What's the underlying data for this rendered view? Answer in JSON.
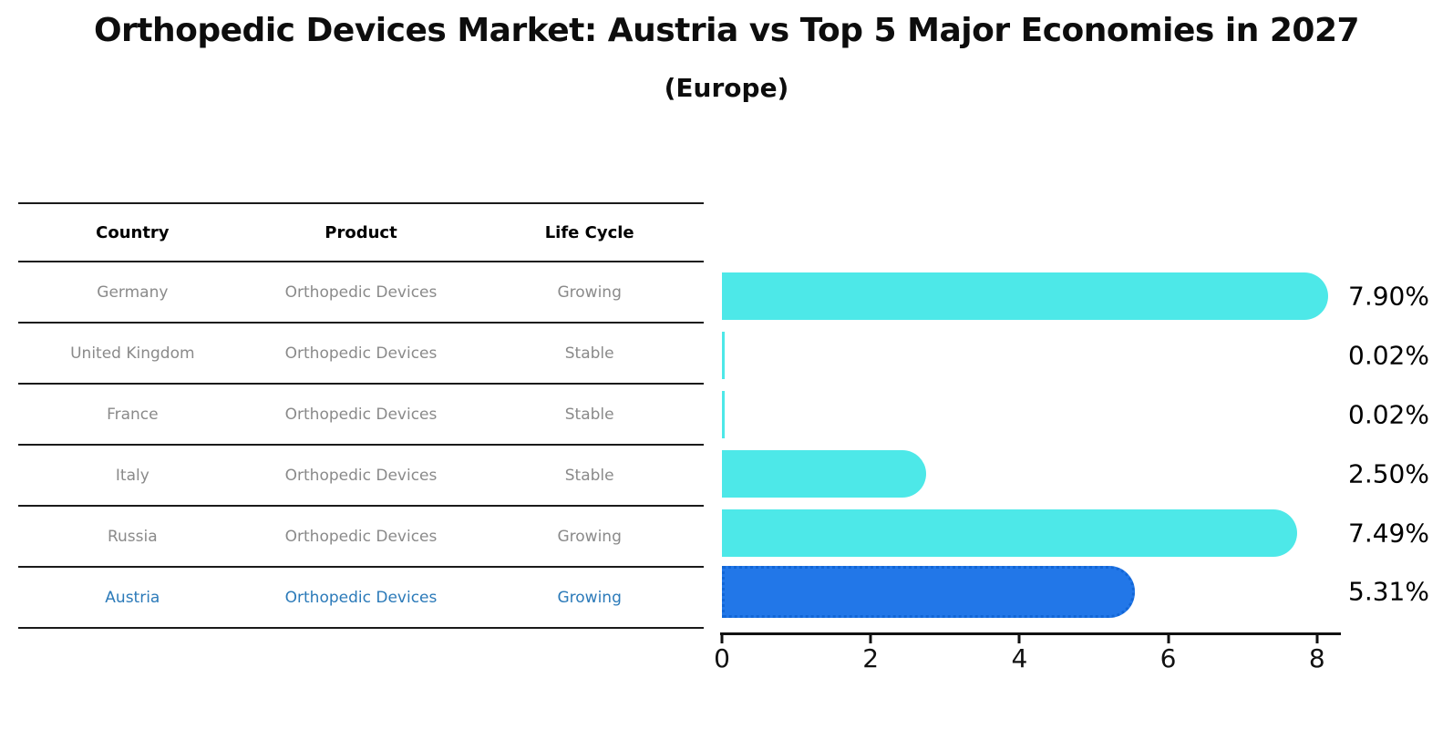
{
  "title": "Orthopedic Devices Market: Austria vs Top 5 Major Economies in 2027",
  "subtitle": "(Europe)",
  "table": {
    "headers": [
      "Country",
      "Product",
      "Life Cycle"
    ],
    "rows": [
      {
        "country": "Germany",
        "product": "Orthopedic Devices",
        "life_cycle": "Growing",
        "highlight": false
      },
      {
        "country": "United Kingdom",
        "product": "Orthopedic Devices",
        "life_cycle": "Stable",
        "highlight": false
      },
      {
        "country": "France",
        "product": "Orthopedic Devices",
        "life_cycle": "Stable",
        "highlight": false
      },
      {
        "country": "Italy",
        "product": "Orthopedic Devices",
        "life_cycle": "Stable",
        "highlight": false
      },
      {
        "country": "Russia",
        "product": "Orthopedic Devices",
        "life_cycle": "Growing",
        "highlight": false
      },
      {
        "country": "Austria",
        "product": "Orthopedic Devices",
        "life_cycle": "Growing",
        "highlight": true
      }
    ]
  },
  "chart_data": {
    "type": "bar",
    "orientation": "horizontal",
    "title": "Orthopedic Devices Market: Austria vs Top 5 Major Economies in 2027 (Europe)",
    "categories": [
      "Germany",
      "United Kingdom",
      "France",
      "Italy",
      "Russia",
      "Austria"
    ],
    "values": [
      7.9,
      0.02,
      0.02,
      2.5,
      7.49,
      5.31
    ],
    "value_labels": [
      "7.90%",
      "0.02%",
      "0.02%",
      "2.50%",
      "7.49%",
      "5.31%"
    ],
    "xlim": [
      0,
      8.3
    ],
    "xticks": [
      0,
      2,
      4,
      6,
      8
    ],
    "grid": false,
    "legend": false,
    "highlight_index": 5,
    "colors": {
      "bar": "#4DE8E8",
      "highlight_bar": "#2277E8",
      "highlight_bar_border": "#1266D6",
      "highlight_text": "#2B7AB9",
      "row_text": "#8A8A8A",
      "axis": "#111111"
    }
  }
}
